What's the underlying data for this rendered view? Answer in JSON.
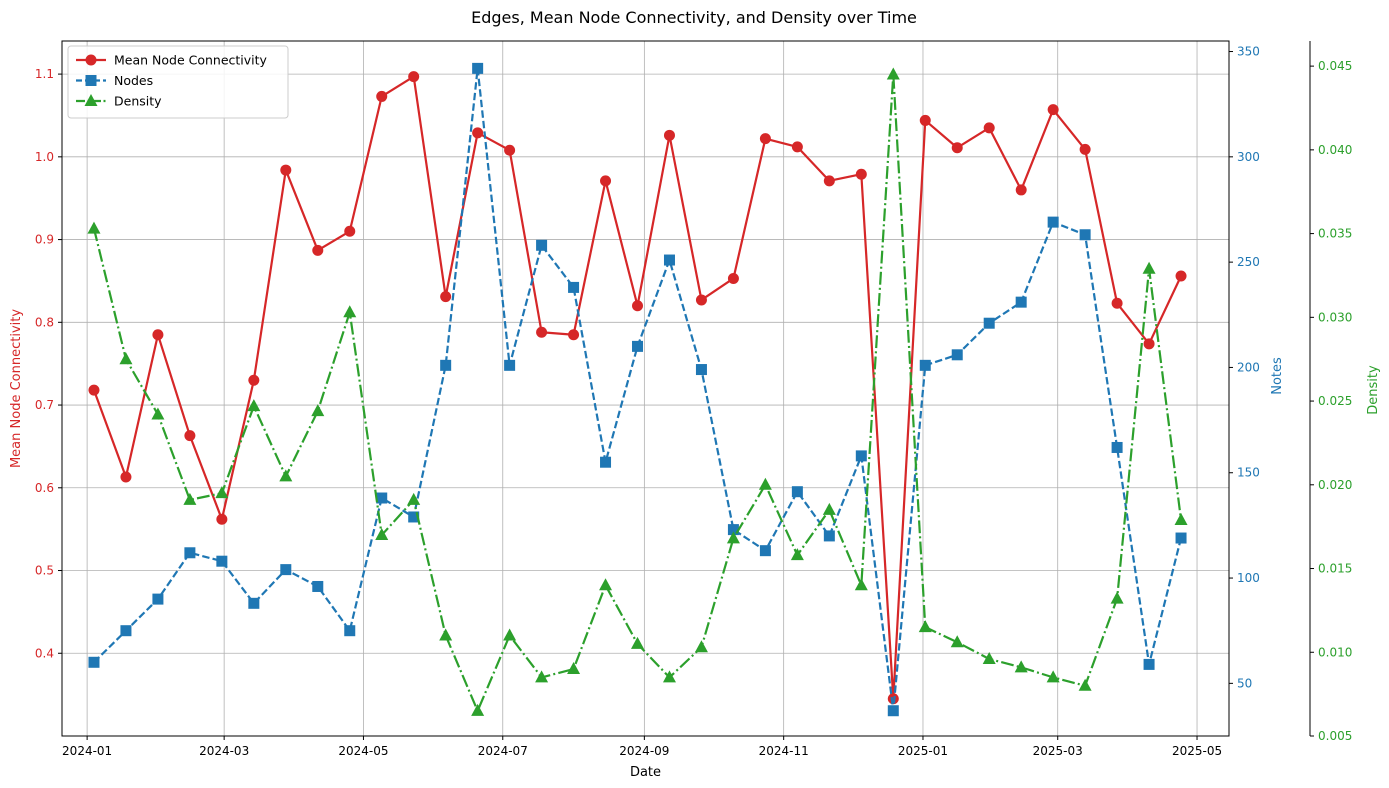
{
  "chart_data": {
    "type": "line",
    "title": "Edges, Mean Node Connectivity, and Density over Time",
    "xlabel": "Date",
    "x_ticks": [
      "2024-01",
      "2024-03",
      "2024-05",
      "2024-07",
      "2024-09",
      "2024-11",
      "2025-01",
      "2025-03",
      "2025-05"
    ],
    "xlim": [
      "2023-12-21",
      "2025-05-15"
    ],
    "grid": true,
    "legend_position": "upper-left",
    "x": [
      "2024-01-04",
      "2024-01-18",
      "2024-02-01",
      "2024-02-15",
      "2024-02-29",
      "2024-03-14",
      "2024-03-28",
      "2024-04-11",
      "2024-04-25",
      "2024-05-09",
      "2024-05-23",
      "2024-06-06",
      "2024-06-20",
      "2024-07-04",
      "2024-07-18",
      "2024-08-01",
      "2024-08-15",
      "2024-08-29",
      "2024-09-12",
      "2024-09-26",
      "2024-10-10",
      "2024-10-24",
      "2024-11-07",
      "2024-11-21",
      "2024-12-05",
      "2024-12-19",
      "2025-01-02",
      "2025-01-16",
      "2025-01-30",
      "2025-02-13",
      "2025-02-27",
      "2025-03-13",
      "2025-03-27",
      "2025-04-10",
      "2025-04-24"
    ],
    "axes": {
      "left": {
        "label": "Mean Node Connectivity",
        "color": "#d62728",
        "lim": [
          0.3,
          1.14
        ],
        "ticks": [
          "0.4",
          "0.5",
          "0.6",
          "0.7",
          "0.8",
          "0.9",
          "1.0",
          "1.1"
        ]
      },
      "right1": {
        "label": "Notes",
        "color": "#1f77b4",
        "lim": [
          25,
          355
        ],
        "ticks": [
          "50",
          "100",
          "150",
          "200",
          "250",
          "300",
          "350"
        ]
      },
      "right2": {
        "label": "Density",
        "color": "#2ca02c",
        "lim": [
          0.005,
          0.0465
        ],
        "ticks": [
          "0.005",
          "0.010",
          "0.015",
          "0.020",
          "0.025",
          "0.030",
          "0.035",
          "0.040",
          "0.045"
        ]
      }
    },
    "series": [
      {
        "name": "Mean Node Connectivity",
        "axis": "left",
        "color": "#d62728",
        "linestyle": "solid",
        "marker": "circle",
        "values": [
          0.718,
          0.613,
          0.785,
          0.663,
          0.562,
          0.73,
          0.984,
          0.887,
          0.91,
          1.073,
          1.097,
          0.831,
          1.029,
          1.008,
          0.788,
          0.785,
          0.971,
          0.82,
          1.026,
          0.827,
          0.853,
          1.022,
          1.012,
          0.971,
          0.979,
          0.345,
          1.044,
          1.011,
          1.035,
          0.96,
          1.057,
          1.009,
          0.823,
          0.774,
          0.856
        ]
      },
      {
        "name": "Nodes",
        "axis": "right1",
        "color": "#1f77b4",
        "linestyle": "dashed",
        "marker": "square",
        "values": [
          60,
          75,
          90,
          112,
          108,
          88,
          104,
          96,
          75,
          138,
          129,
          201,
          342,
          201,
          258,
          238,
          155,
          210,
          251,
          199,
          123,
          113,
          141,
          120,
          158,
          37,
          201,
          206,
          221,
          231,
          269,
          263,
          162,
          59,
          119
        ]
      },
      {
        "name": "Density",
        "axis": "right2",
        "color": "#2ca02c",
        "linestyle": "dashdot",
        "marker": "triangle",
        "values": [
          0.0353,
          0.0275,
          0.0242,
          0.0191,
          0.0195,
          0.0247,
          0.0205,
          0.0244,
          0.0303,
          0.017,
          0.0191,
          0.011,
          0.0065,
          0.011,
          0.0085,
          0.009,
          0.014,
          0.0105,
          0.0085,
          0.0103,
          0.0168,
          0.02,
          0.0158,
          0.0185,
          0.014,
          0.0445,
          0.0115,
          0.0106,
          0.0096,
          0.0091,
          0.0085,
          0.008,
          0.0132,
          0.0329,
          0.0179
        ]
      }
    ]
  }
}
